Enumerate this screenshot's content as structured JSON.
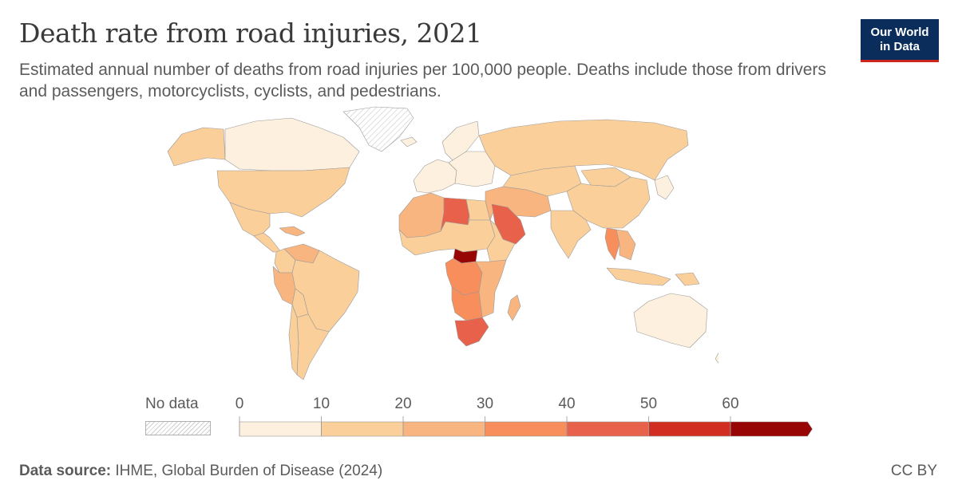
{
  "header": {
    "title": "Death rate from road injuries, 2021",
    "subtitle": "Estimated annual number of deaths from road injuries per 100,000 people. Deaths include those from drivers and passengers, motorcyclists, cyclists, and pedestrians."
  },
  "logo": {
    "line1": "Our World",
    "line2": "in Data"
  },
  "legend": {
    "no_data_label": "No data",
    "ticks": [
      "0",
      "10",
      "20",
      "30",
      "40",
      "50",
      "60"
    ],
    "bins": [
      {
        "from": 0,
        "to": 10,
        "color": "#fdf0de"
      },
      {
        "from": 10,
        "to": 20,
        "color": "#fbcf9a"
      },
      {
        "from": 20,
        "to": 30,
        "color": "#f9b57f"
      },
      {
        "from": 30,
        "to": 40,
        "color": "#f78e5b"
      },
      {
        "from": 40,
        "to": 50,
        "color": "#e8614a"
      },
      {
        "from": 50,
        "to": 60,
        "color": "#d22d21"
      },
      {
        "from": 60,
        "to": null,
        "color": "#970505"
      }
    ]
  },
  "map_data": {
    "regions": [
      {
        "id": "alaska",
        "bin": 1
      },
      {
        "id": "canada",
        "bin": 0
      },
      {
        "id": "greenland",
        "bin": -1
      },
      {
        "id": "usa",
        "bin": 1
      },
      {
        "id": "mexico",
        "bin": 1
      },
      {
        "id": "central-america",
        "bin": 1
      },
      {
        "id": "caribbean",
        "bin": 2
      },
      {
        "id": "venezuela",
        "bin": 2
      },
      {
        "id": "colombia",
        "bin": 1
      },
      {
        "id": "ecuador-peru",
        "bin": 2
      },
      {
        "id": "brazil",
        "bin": 1
      },
      {
        "id": "bolivia",
        "bin": 1
      },
      {
        "id": "southern-cone",
        "bin": 1
      },
      {
        "id": "chile",
        "bin": 1
      },
      {
        "id": "iceland",
        "bin": 0
      },
      {
        "id": "scandinavia",
        "bin": 0
      },
      {
        "id": "western-europe",
        "bin": 0
      },
      {
        "id": "eastern-europe",
        "bin": 0
      },
      {
        "id": "russia",
        "bin": 1
      },
      {
        "id": "north-africa-west",
        "bin": 2
      },
      {
        "id": "libya",
        "bin": 4
      },
      {
        "id": "egypt",
        "bin": 1
      },
      {
        "id": "sahel",
        "bin": 1
      },
      {
        "id": "horn-of-africa",
        "bin": 1
      },
      {
        "id": "central-african-republic",
        "bin": 6
      },
      {
        "id": "congo-basin",
        "bin": 3
      },
      {
        "id": "angola",
        "bin": 3
      },
      {
        "id": "east-africa",
        "bin": 2
      },
      {
        "id": "south-africa",
        "bin": 4
      },
      {
        "id": "madagascar",
        "bin": 2
      },
      {
        "id": "saudi-arabia",
        "bin": 4
      },
      {
        "id": "middle-east",
        "bin": 2
      },
      {
        "id": "central-asia",
        "bin": 1
      },
      {
        "id": "india",
        "bin": 1
      },
      {
        "id": "china",
        "bin": 1
      },
      {
        "id": "mongolia",
        "bin": 1
      },
      {
        "id": "japan-korea",
        "bin": 0
      },
      {
        "id": "thailand",
        "bin": 3
      },
      {
        "id": "southeast-asia",
        "bin": 2
      },
      {
        "id": "indonesia",
        "bin": 1
      },
      {
        "id": "papua-new-guinea",
        "bin": 1
      },
      {
        "id": "australia",
        "bin": 0
      },
      {
        "id": "new-zealand",
        "bin": 0
      }
    ]
  },
  "footer": {
    "source_label": "Data source:",
    "source_text": "IHME, Global Burden of Disease (2024)",
    "license": "CC BY"
  }
}
